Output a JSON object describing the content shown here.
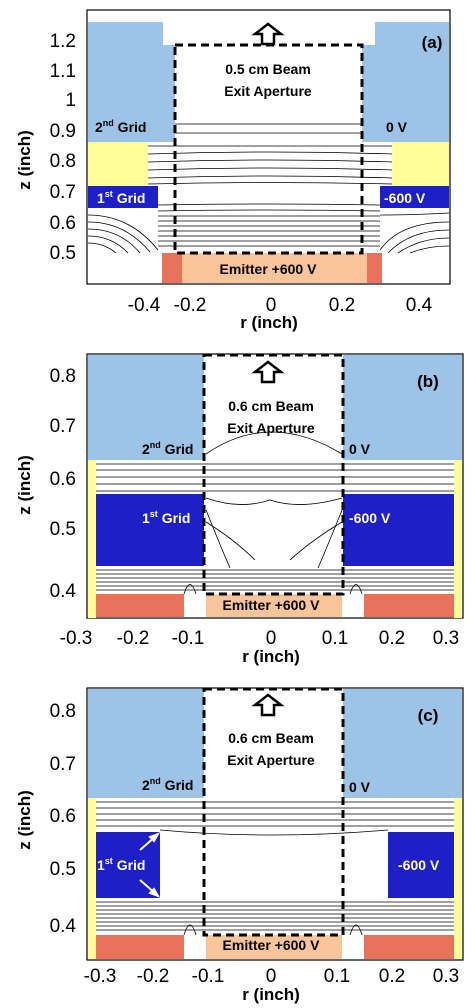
{
  "colors": {
    "grid2": "#9dc3e6",
    "grid1": "#1f1fc8",
    "insulator": "#ffff99",
    "emitter_tan": "#f8c49a",
    "emitter_red": "#e8735a"
  },
  "panels": [
    {
      "id": "a",
      "panel_label": "(a)",
      "aperture_label_1": "0.5 cm Beam",
      "aperture_label_2": "Exit Aperture",
      "grid2_label": "Grid",
      "grid2_num": "2",
      "grid2_sup": "nd",
      "grid2_voltage": "0 V",
      "grid1_label": "Grid",
      "grid1_num": "1",
      "grid1_sup": "st",
      "grid1_voltage": "-600 V",
      "emitter_label": "Emitter +600 V",
      "x_axis_label": "r (inch)",
      "y_axis_label": "z (inch)",
      "x_ticks": [
        "-0.4",
        "-0.2",
        "0",
        "0.2",
        "0.4"
      ],
      "y_ticks": [
        "1.2",
        "1.1",
        "1",
        "0.9",
        "0.8",
        "0.7",
        "0.6",
        "0.5"
      ],
      "icon": "up-arrow-icon"
    },
    {
      "id": "b",
      "panel_label": "(b)",
      "aperture_label_1": "0.6 cm Beam",
      "aperture_label_2": "Exit Aperture",
      "grid2_label": "Grid",
      "grid2_num": "2",
      "grid2_sup": "nd",
      "grid2_voltage": "0 V",
      "grid1_label": "Grid",
      "grid1_num": "1",
      "grid1_sup": "st",
      "grid1_voltage": "-600 V",
      "emitter_label": "Emitter +600 V",
      "x_axis_label": "r (inch)",
      "y_axis_label": "z (inch)",
      "x_ticks": [
        "-0.3",
        "-0.2",
        "-0.1",
        "0",
        "0.1",
        "0.2",
        "0.3"
      ],
      "y_ticks": [
        "0.8",
        "0.7",
        "0.6",
        "0.5",
        "0.4"
      ],
      "icon": "up-arrow-icon"
    },
    {
      "id": "c",
      "panel_label": "(c)",
      "aperture_label_1": "0.6 cm Beam",
      "aperture_label_2": "Exit Aperture",
      "grid2_label": "Grid",
      "grid2_num": "2",
      "grid2_sup": "nd",
      "grid2_voltage": "0 V",
      "grid1_label": "Grid",
      "grid1_num": "1",
      "grid1_sup": "st",
      "grid1_voltage": "-600 V",
      "emitter_label": "Emitter +600 V",
      "x_axis_label": "r (inch)",
      "y_axis_label": "z (inch)",
      "x_ticks": [
        "-0.3",
        "-0.2",
        "-0.1",
        "0",
        "0.1",
        "0.2",
        "0.3"
      ],
      "y_ticks": [
        "0.8",
        "0.7",
        "0.6",
        "0.5",
        "0.4"
      ],
      "icon": "up-arrow-icon"
    }
  ]
}
